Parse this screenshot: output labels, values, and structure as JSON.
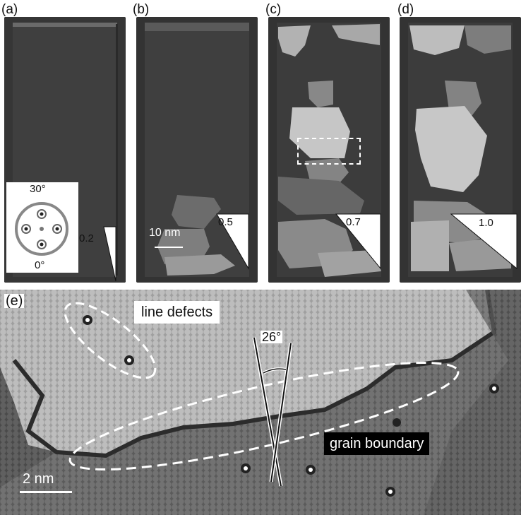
{
  "figure": {
    "panels": [
      {
        "label": "(a)",
        "value": "0.2"
      },
      {
        "label": "(b)",
        "value": "0.5"
      },
      {
        "label": "(c)",
        "value": "0.7"
      },
      {
        "label": "(d)",
        "value": "1.0"
      }
    ],
    "inset": {
      "top_label": "30°",
      "bottom_label": "0°"
    },
    "scale_bar_top": "10 nm",
    "panel_e": {
      "label": "(e)",
      "line_defects": "line defects",
      "grain_boundary": "grain boundary",
      "angle": "26°",
      "scale_bar": "2 nm"
    }
  }
}
